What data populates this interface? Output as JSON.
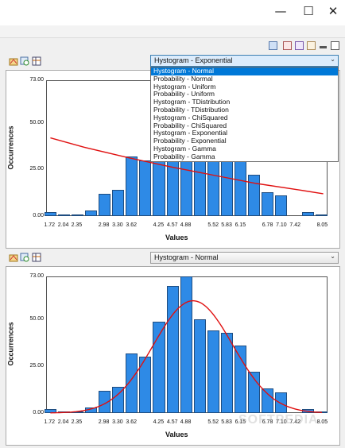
{
  "window": {
    "minimize_glyph": "—",
    "maximize_glyph": "☐",
    "close_glyph": "✕"
  },
  "panels": [
    {
      "dropdown_value": "Hystogram - Exponential",
      "dropdown_open": true,
      "chart_data": {
        "type": "bar",
        "xlabel": "Values",
        "ylabel": "Occurrences",
        "ylim": [
          0,
          73
        ],
        "yticks": [
          "73.00",
          "50.00",
          "25.00",
          "0.00"
        ],
        "ytick_values": [
          73,
          50,
          25,
          0
        ],
        "xticks": [
          "1.72",
          "2.04",
          "2.35",
          "2.98",
          "3.30",
          "3.62",
          "4.25",
          "4.57",
          "4.88",
          "5.52",
          "5.83",
          "6.15",
          "6.78",
          "7.10",
          "7.42",
          "8.05"
        ],
        "xtick_values": [
          1.72,
          2.04,
          2.35,
          2.98,
          3.3,
          3.62,
          4.25,
          4.57,
          4.88,
          5.52,
          5.83,
          6.15,
          6.78,
          7.1,
          7.42,
          8.05
        ],
        "xlim": [
          1.62,
          8.15
        ],
        "bin_width": 0.315,
        "bins": [
          1.72,
          2.035,
          2.35,
          2.665,
          2.98,
          3.295,
          3.61,
          3.925,
          4.24,
          4.555,
          4.87,
          5.185,
          5.5,
          5.815,
          6.13,
          6.445,
          6.76,
          7.075,
          7.39,
          7.705,
          8.02
        ],
        "values": [
          2,
          1,
          1,
          3,
          12,
          14,
          32,
          30,
          49,
          68,
          75,
          50,
          44,
          43,
          36,
          22,
          13,
          11,
          0,
          2,
          1
        ],
        "fit": {
          "name": "Exponential",
          "points": [
            [
              1.72,
              42
            ],
            [
              2.5,
              37
            ],
            [
              3.5,
              31.5
            ],
            [
              4.5,
              26.5
            ],
            [
              5.5,
              22
            ],
            [
              6.5,
              17.5
            ],
            [
              7.5,
              14
            ],
            [
              8.05,
              12
            ]
          ]
        },
        "bar_color": "#2e8ae6",
        "fit_color": "#e01010"
      }
    },
    {
      "dropdown_value": "Hystogram - Normal",
      "dropdown_open": false,
      "chart_data": {
        "type": "bar",
        "xlabel": "Values",
        "ylabel": "Occurrences",
        "ylim": [
          0,
          73
        ],
        "yticks": [
          "73.00",
          "50.00",
          "25.00",
          "0.00"
        ],
        "ytick_values": [
          73,
          50,
          25,
          0
        ],
        "xticks": [
          "1.72",
          "2.04",
          "2.35",
          "2.98",
          "3.30",
          "3.62",
          "4.25",
          "4.57",
          "4.88",
          "5.52",
          "5.83",
          "6.15",
          "6.78",
          "7.10",
          "7.42",
          "8.05"
        ],
        "xtick_values": [
          1.72,
          2.04,
          2.35,
          2.98,
          3.3,
          3.62,
          4.25,
          4.57,
          4.88,
          5.52,
          5.83,
          6.15,
          6.78,
          7.1,
          7.42,
          8.05
        ],
        "xlim": [
          1.62,
          8.15
        ],
        "bin_width": 0.315,
        "bins": [
          1.72,
          2.035,
          2.35,
          2.665,
          2.98,
          3.295,
          3.61,
          3.925,
          4.24,
          4.555,
          4.87,
          5.185,
          5.5,
          5.815,
          6.13,
          6.445,
          6.76,
          7.075,
          7.39,
          7.705,
          8.02
        ],
        "values": [
          2,
          1,
          1,
          3,
          12,
          14,
          32,
          30,
          49,
          68,
          75,
          50,
          44,
          43,
          36,
          22,
          13,
          11,
          0,
          2,
          1
        ],
        "fit": {
          "name": "Normal",
          "mean": 5.03,
          "sd": 0.92,
          "peak": 60
        },
        "bar_color": "#2e8ae6",
        "fit_color": "#e01010"
      }
    }
  ],
  "dropdown_options": [
    "Hystogram - Normal",
    "Probability - Normal",
    "Hystogram - Uniform",
    "Probability - Uniform",
    "Hystogram - TDistribution",
    "Probability - TDistribution",
    "Hystogram - ChiSquared",
    "Probability - ChiSquared",
    "Hystogram - Exponential",
    "Probability - Exponential",
    "Hystogram - Gamma",
    "Probability - Gamma"
  ],
  "selected_option_index": 0,
  "icons": [
    "settings-icon",
    "zoom-icon",
    "grid-icon",
    "layout-icon",
    "edit-icon",
    "chart-icon",
    "restore-icon",
    "maximize-icon"
  ],
  "watermark": "SOFTPEDIA"
}
